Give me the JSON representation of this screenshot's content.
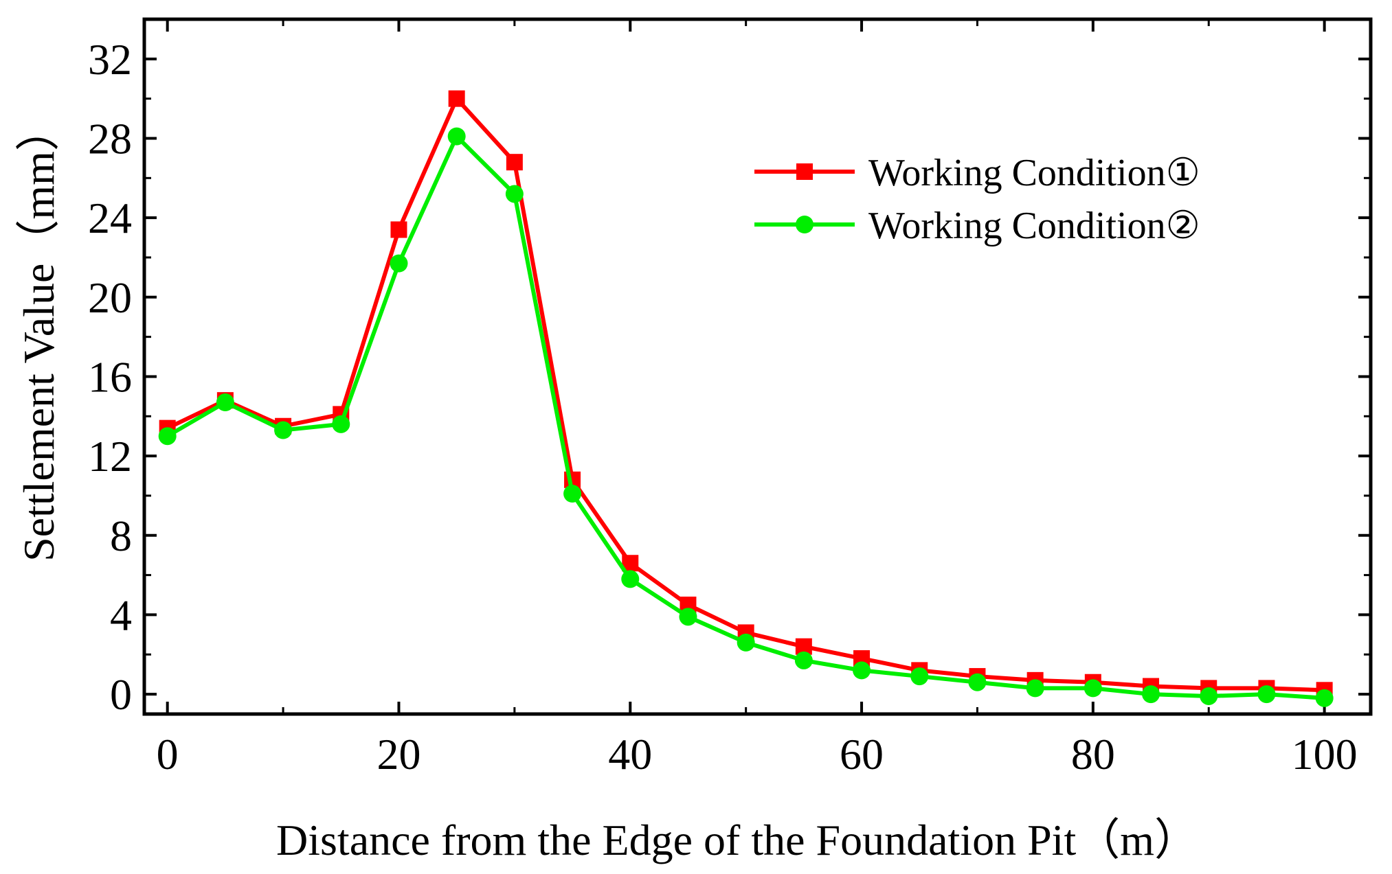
{
  "chart_data": {
    "type": "line",
    "title": "",
    "xlabel": "Distance from the Edge of the Foundation Pit（m）",
    "ylabel": "Settlement Value（mm）",
    "xlim": [
      -2,
      104
    ],
    "ylim": [
      -1,
      34
    ],
    "xticks": [
      0,
      20,
      40,
      60,
      80,
      100
    ],
    "yticks": [
      0,
      4,
      8,
      12,
      16,
      20,
      24,
      28,
      32
    ],
    "grid": false,
    "legend_position": "top-right",
    "x": [
      0,
      5,
      10,
      15,
      20,
      25,
      30,
      35,
      40,
      45,
      50,
      55,
      60,
      65,
      70,
      75,
      80,
      85,
      90,
      95,
      100
    ],
    "series": [
      {
        "name": "Working Condition①",
        "color": "#ff0000",
        "marker": "square",
        "values": [
          13.4,
          14.8,
          13.5,
          14.1,
          23.4,
          30.0,
          26.8,
          10.8,
          6.6,
          4.5,
          3.1,
          2.4,
          1.8,
          1.2,
          0.9,
          0.7,
          0.6,
          0.4,
          0.3,
          0.3,
          0.2
        ]
      },
      {
        "name": "Working Condition②",
        "color": "#00ee00",
        "marker": "circle",
        "values": [
          13.0,
          14.7,
          13.3,
          13.6,
          21.7,
          28.1,
          25.2,
          10.1,
          5.8,
          3.9,
          2.6,
          1.7,
          1.2,
          0.9,
          0.6,
          0.3,
          0.3,
          0.0,
          -0.1,
          0.0,
          -0.2
        ]
      }
    ]
  }
}
